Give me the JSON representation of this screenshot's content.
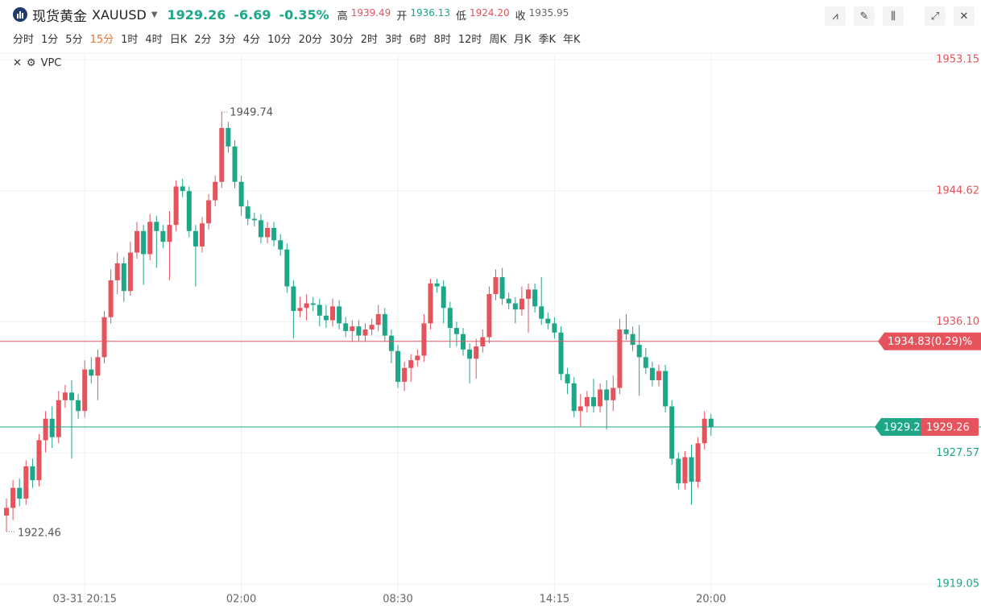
{
  "header": {
    "name": "现货黄金",
    "symbol": "XAUUSD",
    "price": "1929.26",
    "change": "-6.69",
    "change_pct": "-0.35%",
    "stats": [
      {
        "label": "高",
        "value": "1939.49"
      },
      {
        "label": "开",
        "value": "1936.13"
      },
      {
        "label": "低",
        "value": "1924.20"
      },
      {
        "label": "收",
        "value": "1935.95"
      }
    ]
  },
  "intervals": [
    "分时",
    "1分",
    "5分",
    "15分",
    "1时",
    "4时",
    "日K",
    "2分",
    "3分",
    "4分",
    "10分",
    "20分",
    "30分",
    "2时",
    "3时",
    "6时",
    "8时",
    "12时",
    "周K",
    "月K",
    "季K",
    "年K"
  ],
  "active_interval_index": 3,
  "indicator": "VPC",
  "chart_data": {
    "type": "candlestick",
    "up_color": "#e5535d",
    "down_color": "#1ea689",
    "grid": true,
    "categories": [
      null,
      null,
      null,
      null,
      null,
      null,
      null,
      null,
      null,
      null,
      null,
      null,
      "03-31 20:15",
      null,
      null,
      null,
      null,
      null,
      null,
      null,
      null,
      null,
      null,
      null,
      null,
      null,
      null,
      null,
      null,
      null,
      null,
      null,
      null,
      null,
      null,
      null,
      "02:00",
      null,
      null,
      null,
      null,
      null,
      null,
      null,
      null,
      null,
      null,
      null,
      null,
      null,
      null,
      null,
      null,
      null,
      null,
      null,
      null,
      null,
      null,
      null,
      "08:30",
      null,
      null,
      null,
      null,
      null,
      null,
      null,
      null,
      null,
      null,
      null,
      null,
      null,
      null,
      null,
      null,
      null,
      null,
      null,
      null,
      null,
      null,
      null,
      "14:15",
      null,
      null,
      null,
      null,
      null,
      null,
      null,
      null,
      null,
      null,
      null,
      null,
      null,
      null,
      null,
      null,
      null,
      null,
      null,
      null,
      null,
      null,
      null,
      "20:00"
    ],
    "open": [
      1923.5,
      1924.0,
      1925.3,
      1924.6,
      1926.7,
      1925.8,
      1928.4,
      1929.8,
      1928.6,
      1931.0,
      1931.5,
      1931.0,
      1930.3,
      1933.0,
      1932.6,
      1933.8,
      1936.4,
      1938.8,
      1939.9,
      1938.1,
      1940.6,
      1942.0,
      1940.5,
      1942.6,
      1942.0,
      1941.3,
      1942.4,
      1944.9,
      1944.6,
      1942.0,
      1941.0,
      1942.5,
      1944.0,
      1945.2,
      1948.7,
      1947.5,
      1945.2,
      1943.6,
      1942.8,
      1942.7,
      1941.6,
      1942.2,
      1941.4,
      1940.8,
      1938.4,
      1936.8,
      1937.0,
      1937.3,
      1937.2,
      1936.5,
      1936.2,
      1937.1,
      1936.0,
      1935.5,
      1935.8,
      1935.2,
      1935.6,
      1935.9,
      1936.6,
      1935.2,
      1934.2,
      1932.2,
      1933.1,
      1933.6,
      1933.9,
      1936.0,
      1938.6,
      1938.4,
      1937.0,
      1935.7,
      1935.3,
      1934.3,
      1933.7,
      1934.5,
      1935.1,
      1937.9,
      1939.0,
      1937.6,
      1937.3,
      1936.9,
      1937.6,
      1938.2,
      1937.1,
      1936.3,
      1936.0,
      1935.4,
      1932.7,
      1932.1,
      1930.3,
      1930.6,
      1931.2,
      1930.6,
      1931.7,
      1931.0,
      1931.8,
      1935.6,
      1935.3,
      1934.6,
      1933.8,
      1933.1,
      1932.3,
      1932.9,
      1930.6,
      1927.2,
      1925.6,
      1927.3,
      1925.7,
      1928.2,
      1929.8
    ],
    "high": [
      1924.6,
      1925.8,
      1925.9,
      1927.1,
      1927.2,
      1928.8,
      1930.3,
      1930.6,
      1931.6,
      1932.0,
      1932.3,
      1931.4,
      1933.6,
      1933.8,
      1934.3,
      1936.8,
      1939.5,
      1940.6,
      1940.3,
      1941.3,
      1942.6,
      1942.4,
      1943.1,
      1943.0,
      1942.4,
      1943.3,
      1945.3,
      1945.4,
      1944.9,
      1942.4,
      1942.9,
      1944.4,
      1945.6,
      1949.74,
      1949.1,
      1947.9,
      1945.6,
      1944.0,
      1943.2,
      1943.1,
      1942.6,
      1942.6,
      1941.8,
      1941.2,
      1938.8,
      1937.7,
      1937.9,
      1937.7,
      1937.6,
      1937.2,
      1937.6,
      1937.5,
      1936.4,
      1936.2,
      1936.2,
      1936.0,
      1936.3,
      1937.2,
      1937.0,
      1935.6,
      1934.6,
      1933.5,
      1934.0,
      1934.3,
      1936.6,
      1938.9,
      1938.9,
      1938.8,
      1937.4,
      1936.1,
      1935.7,
      1934.7,
      1935.0,
      1935.6,
      1938.4,
      1939.5,
      1939.6,
      1938.0,
      1937.7,
      1938.4,
      1938.6,
      1938.6,
      1939.0,
      1936.7,
      1936.4,
      1935.8,
      1933.1,
      1932.5,
      1931.4,
      1931.6,
      1932.4,
      1932.1,
      1932.3,
      1932.6,
      1936.3,
      1936.6,
      1935.8,
      1935.9,
      1934.4,
      1933.5,
      1933.3,
      1933.3,
      1931.0,
      1927.6,
      1927.7,
      1928.1,
      1928.6,
      1930.3,
      1930.1
    ],
    "low": [
      1922.46,
      1923.2,
      1924.1,
      1924.2,
      1925.3,
      1925.4,
      1927.6,
      1927.9,
      1928.2,
      1930.5,
      1927.2,
      1929.8,
      1929.9,
      1932.1,
      1931.0,
      1933.4,
      1936.0,
      1937.9,
      1937.4,
      1937.8,
      1940.2,
      1938.5,
      1940.1,
      1939.6,
      1940.9,
      1938.8,
      1942.0,
      1944.2,
      1941.6,
      1938.4,
      1940.6,
      1942.1,
      1943.6,
      1944.8,
      1947.1,
      1944.8,
      1943.0,
      1942.4,
      1942.3,
      1941.2,
      1941.2,
      1941.0,
      1940.4,
      1938.0,
      1935.0,
      1936.4,
      1936.2,
      1936.8,
      1935.8,
      1935.7,
      1935.8,
      1935.6,
      1935.1,
      1934.8,
      1934.8,
      1934.8,
      1935.2,
      1935.5,
      1934.8,
      1933.4,
      1931.8,
      1931.6,
      1932.2,
      1933.2,
      1933.5,
      1935.6,
      1938.0,
      1936.0,
      1934.4,
      1934.5,
      1933.9,
      1932.1,
      1932.4,
      1934.1,
      1934.7,
      1937.5,
      1937.2,
      1936.9,
      1936.0,
      1936.5,
      1935.4,
      1936.7,
      1935.9,
      1935.6,
      1935.0,
      1932.3,
      1931.4,
      1929.9,
      1929.3,
      1930.2,
      1930.2,
      1930.2,
      1929.1,
      1930.3,
      1931.4,
      1934.9,
      1934.2,
      1931.3,
      1932.7,
      1931.9,
      1931.9,
      1930.2,
      1926.8,
      1925.2,
      1925.2,
      1924.2,
      1925.3,
      1927.8,
      1928.7
    ],
    "close": [
      1924.0,
      1925.3,
      1924.6,
      1926.7,
      1925.8,
      1928.4,
      1929.8,
      1928.6,
      1931.0,
      1931.5,
      1931.0,
      1930.3,
      1933.0,
      1932.6,
      1933.8,
      1936.4,
      1938.8,
      1939.9,
      1938.1,
      1940.6,
      1942.0,
      1940.5,
      1942.6,
      1942.0,
      1941.3,
      1942.4,
      1944.9,
      1944.6,
      1942.0,
      1941.0,
      1942.5,
      1944.0,
      1945.2,
      1948.7,
      1947.5,
      1945.2,
      1943.6,
      1942.8,
      1942.7,
      1941.6,
      1942.2,
      1941.4,
      1940.8,
      1938.4,
      1936.8,
      1937.0,
      1937.3,
      1937.2,
      1936.5,
      1936.2,
      1937.1,
      1936.0,
      1935.5,
      1935.8,
      1935.2,
      1935.6,
      1935.9,
      1936.6,
      1935.2,
      1934.2,
      1932.2,
      1933.1,
      1933.6,
      1933.9,
      1936.0,
      1938.6,
      1938.4,
      1937.0,
      1935.7,
      1935.3,
      1934.3,
      1933.7,
      1934.5,
      1935.1,
      1937.9,
      1939.0,
      1937.6,
      1937.3,
      1936.9,
      1937.6,
      1938.2,
      1937.1,
      1936.3,
      1936.0,
      1935.4,
      1932.7,
      1932.1,
      1930.3,
      1930.6,
      1931.2,
      1930.6,
      1931.7,
      1931.0,
      1931.8,
      1935.6,
      1935.3,
      1934.6,
      1933.8,
      1933.1,
      1932.3,
      1932.9,
      1930.6,
      1927.2,
      1925.6,
      1927.3,
      1925.7,
      1928.2,
      1929.8,
      1929.26
    ],
    "ylim": [
      1917.74,
      1953.46
    ],
    "yticks": [
      1953.15,
      1944.62,
      {
        "value": 1936.1,
        "label": "1936.10"
      },
      1927.57,
      1919.05
    ],
    "price_lines": [
      {
        "value": 1934.83,
        "label": "1934.83(0.29)%",
        "color": "#e5535d"
      },
      {
        "value": 1929.26,
        "label": "1929.26",
        "color": "#1ea689"
      }
    ]
  }
}
